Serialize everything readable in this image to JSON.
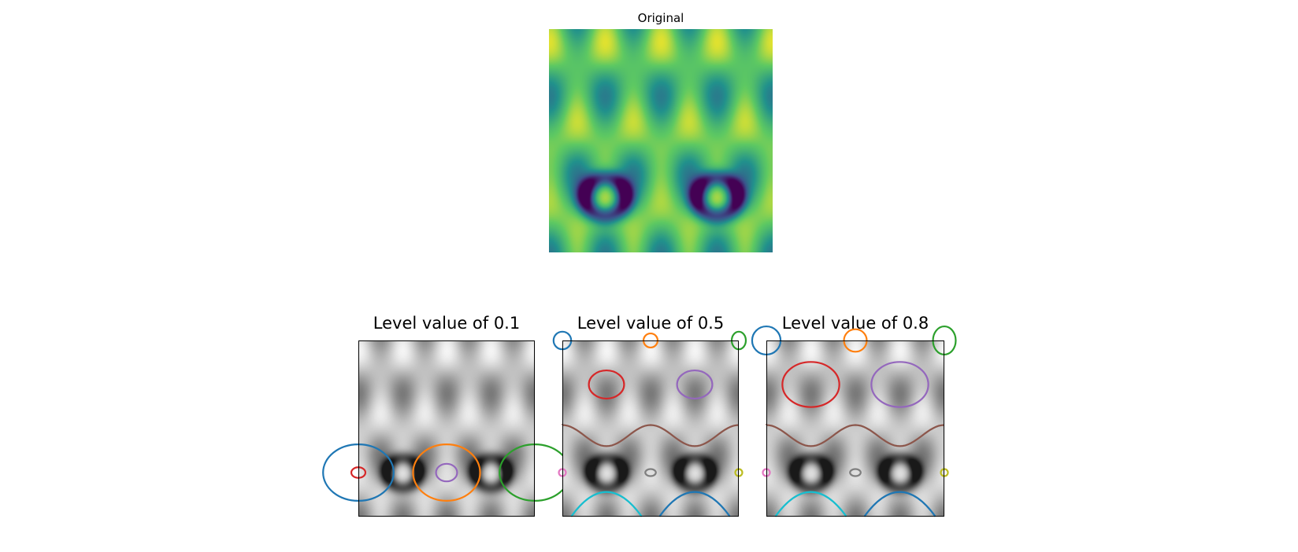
{
  "chart_data": [
    {
      "type": "heatmap",
      "title": "Original",
      "colormap": "viridis",
      "axes_visible": false,
      "x_range": [
        0,
        10
      ],
      "y_range": [
        0,
        10
      ],
      "function": "value = (sin(x)^2 * sin(y)^2 stylised 2-D periodic field, normalised 0..1)"
    },
    {
      "type": "contour",
      "title": "Level value of 0.1",
      "level": 0.1,
      "background_colormap": "gray",
      "contour_colors": [
        "#1f77b4",
        "#ff7f0e",
        "#2ca02c",
        "#d62728",
        "#9467bd"
      ]
    },
    {
      "type": "contour",
      "title": "Level value of 0.5",
      "level": 0.5,
      "background_colormap": "gray",
      "contour_colors": [
        "#1f77b4",
        "#ff7f0e",
        "#2ca02c",
        "#d62728",
        "#9467bd",
        "#8c564b",
        "#e377c2",
        "#7f7f7f",
        "#bcbd22",
        "#17becf"
      ]
    },
    {
      "type": "contour",
      "title": "Level value of 0.8",
      "level": 0.8,
      "background_colormap": "gray",
      "contour_colors": [
        "#1f77b4",
        "#ff7f0e",
        "#2ca02c",
        "#d62728",
        "#9467bd",
        "#8c564b",
        "#e377c2",
        "#7f7f7f",
        "#bcbd22",
        "#17becf"
      ]
    }
  ]
}
